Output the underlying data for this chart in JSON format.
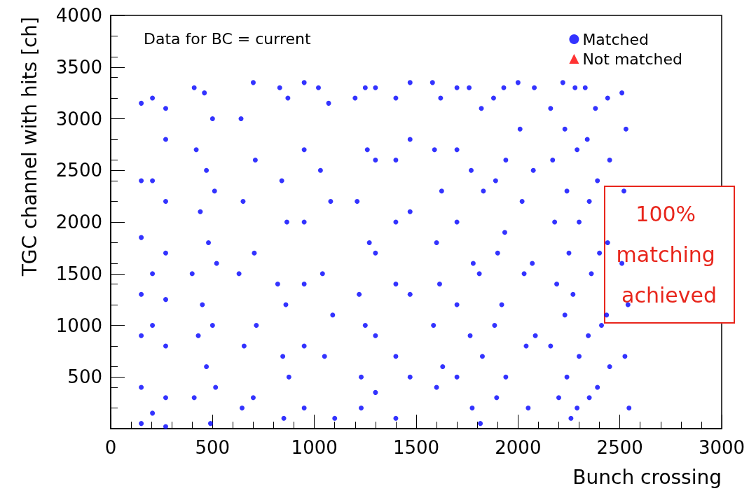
{
  "chart_data": {
    "type": "scatter",
    "xlabel": "Bunch crossing",
    "ylabel": "TGC channel with hits [ch]",
    "annotations": [
      "Data for BC = current",
      "100% matching achieved"
    ],
    "xlim": [
      0,
      3000
    ],
    "xticks": [
      0,
      500,
      1000,
      1500,
      2000,
      2500,
      3000
    ],
    "ylim": [
      0,
      4000
    ],
    "yticks": [
      500,
      1000,
      1500,
      2000,
      2500,
      3000,
      3500,
      4000
    ],
    "grid": false,
    "legend": "top right",
    "marker": "circle",
    "series": [
      {
        "name": "Matched",
        "color": "#0000ff",
        "x": [
          150,
          150,
          150,
          150,
          150,
          150,
          150,
          205,
          205,
          205,
          205,
          205,
          270,
          270,
          270,
          270,
          270,
          270,
          270,
          270,
          410,
          420,
          440,
          400,
          430,
          410,
          460,
          470,
          480,
          450,
          470,
          500,
          510,
          520,
          500,
          515,
          490,
          640,
          650,
          630,
          655,
          645,
          700,
          710,
          705,
          715,
          700,
          830,
          840,
          820,
          845,
          850,
          870,
          865,
          860,
          875,
          950,
          950,
          950,
          950,
          950,
          950,
          1020,
          1030,
          1040,
          1050,
          1070,
          1080,
          1090,
          1100,
          1200,
          1210,
          1220,
          1230,
          1250,
          1260,
          1270,
          1250,
          1230,
          1300,
          1300,
          1300,
          1300,
          1300,
          1400,
          1400,
          1400,
          1400,
          1400,
          1400,
          1470,
          1470,
          1470,
          1470,
          1470,
          1580,
          1590,
          1600,
          1585,
          1600,
          1620,
          1625,
          1615,
          1630,
          1700,
          1700,
          1700,
          1700,
          1700,
          1760,
          1770,
          1780,
          1765,
          1775,
          1820,
          1830,
          1810,
          1825,
          1815,
          1880,
          1890,
          1900,
          1885,
          1895,
          1930,
          1940,
          1935,
          1920,
          1940,
          2000,
          2010,
          2020,
          2030,
          2040,
          2050,
          2080,
          2075,
          2070,
          2085,
          2160,
          2170,
          2180,
          2190,
          2160,
          2200,
          2220,
          2230,
          2240,
          2250,
          2230,
          2240,
          2260,
          2280,
          2290,
          2300,
          2270,
          2300,
          2290,
          2330,
          2340,
          2350,
          2360,
          2345,
          2350,
          2380,
          2390,
          2400,
          2410,
          2390,
          2440,
          2450,
          2440,
          2435,
          2450,
          2510,
          2530,
          2520,
          2510,
          2540,
          2525,
          2545
        ],
        "values": [
          3150,
          2400,
          1850,
          1300,
          900,
          400,
          50,
          3200,
          2400,
          1500,
          1000,
          150,
          3100,
          2800,
          2200,
          1700,
          1250,
          800,
          300,
          20,
          3300,
          2700,
          2100,
          1500,
          900,
          300,
          3250,
          2500,
          1800,
          1200,
          600,
          3000,
          2300,
          1600,
          1000,
          400,
          50,
          3000,
          2200,
          1500,
          800,
          200,
          3350,
          2600,
          1700,
          1000,
          300,
          3300,
          2400,
          1400,
          700,
          100,
          3200,
          2000,
          1200,
          500,
          3350,
          2700,
          2000,
          1400,
          800,
          200,
          3300,
          2500,
          1500,
          700,
          3150,
          2200,
          1100,
          100,
          3200,
          2200,
          1300,
          500,
          3300,
          2700,
          1800,
          1000,
          200,
          3300,
          2600,
          1700,
          900,
          350,
          3200,
          2600,
          2000,
          1400,
          700,
          100,
          3350,
          2800,
          2100,
          1300,
          500,
          3350,
          2700,
          1800,
          1000,
          400,
          3200,
          2300,
          1400,
          600,
          3300,
          2700,
          2000,
          1200,
          500,
          3300,
          2500,
          1600,
          900,
          200,
          3100,
          2300,
          1500,
          700,
          50,
          3200,
          2400,
          1700,
          1000,
          300,
          3300,
          2600,
          1900,
          1200,
          500,
          3350,
          2900,
          2200,
          1500,
          800,
          200,
          3300,
          2500,
          1600,
          900,
          3100,
          2600,
          2000,
          1400,
          800,
          300,
          3350,
          2900,
          2300,
          1700,
          1100,
          500,
          100,
          3300,
          2700,
          2000,
          1300,
          700,
          200,
          3300,
          2800,
          2200,
          1500,
          900,
          300,
          3100,
          2400,
          1700,
          1000,
          400,
          3200,
          2600,
          1800,
          1100,
          600,
          3250,
          2900,
          2300,
          1600,
          1200,
          700,
          200
        ]
      },
      {
        "name": "Not matched",
        "color": "#ff0000",
        "marker": "triangle"
      }
    ]
  }
}
